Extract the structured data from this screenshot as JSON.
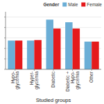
{
  "chart_data": {
    "type": "bar",
    "xlabel": "Studied groups",
    "legend_title": "Gender",
    "categories": [
      "Hypo-\nglycemia",
      "Hyper-\nglycemia",
      "Diabetic",
      "Diabetic +\nHypo-\nglycemia",
      "Other"
    ],
    "series": [
      {
        "name": "Male",
        "color": "#6baed6",
        "values": [
          5.5,
          5.5,
          9.5,
          9.0,
          5.3
        ]
      },
      {
        "name": "Female",
        "color": "#e41a1c",
        "values": [
          5.5,
          5.6,
          7.8,
          7.8,
          5.3
        ]
      }
    ],
    "ylim": [
      0,
      11
    ],
    "yticks": [
      0,
      2,
      4,
      6,
      8,
      10
    ],
    "grid": true,
    "legend": "upper right",
    "tick_labels": "x"
  }
}
